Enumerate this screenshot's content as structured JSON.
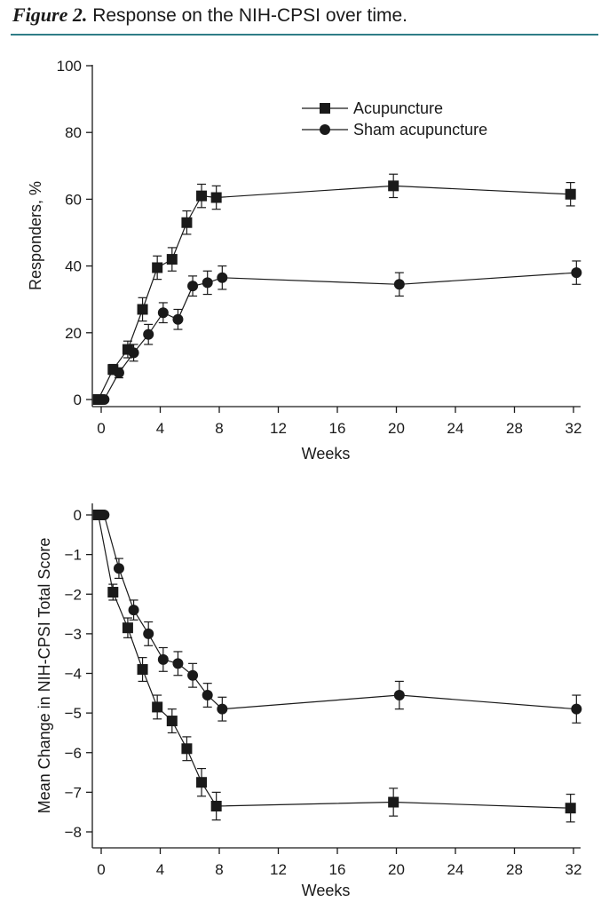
{
  "figure": {
    "lead": "Figure 2.",
    "title": "Response on the NIH-CPSI over time."
  },
  "chart_data": [
    {
      "type": "line",
      "xlabel": "Weeks",
      "ylabel": "Responders, %",
      "xlim": [
        -0.5,
        32.5
      ],
      "ylim": [
        0,
        100
      ],
      "xticks": [
        0,
        4,
        8,
        12,
        16,
        20,
        24,
        28,
        32
      ],
      "yticks": [
        0,
        20,
        40,
        60,
        80,
        100
      ],
      "legend_position": "top-right",
      "series": [
        {
          "name": "Acupuncture",
          "marker": "square",
          "x": [
            -0.2,
            0.8,
            1.8,
            2.8,
            3.8,
            4.8,
            5.8,
            6.8,
            7.8,
            19.8,
            31.8
          ],
          "y": [
            0,
            9,
            15,
            27,
            39.5,
            42,
            53,
            61,
            60.5,
            64,
            61.5
          ],
          "err": [
            0,
            1.5,
            2.5,
            3.5,
            3.5,
            3.5,
            3.5,
            3.5,
            3.5,
            3.5,
            3.5
          ]
        },
        {
          "name": "Sham acupuncture",
          "marker": "circle",
          "x": [
            0.2,
            1.2,
            2.2,
            3.2,
            4.2,
            5.2,
            6.2,
            7.2,
            8.2,
            20.2,
            32.2
          ],
          "y": [
            0,
            8,
            14,
            19.5,
            26,
            24,
            34,
            35,
            36.5,
            34.5,
            38
          ],
          "err": [
            0,
            1.5,
            2.5,
            3,
            3,
            3,
            3,
            3.5,
            3.5,
            3.5,
            3.5
          ]
        }
      ]
    },
    {
      "type": "line",
      "xlabel": "Weeks",
      "ylabel": "Mean Change in NIH-CPSI Total Score",
      "xlim": [
        -0.5,
        32.5
      ],
      "ylim": [
        -8.3,
        0.3
      ],
      "xticks": [
        0,
        4,
        8,
        12,
        16,
        20,
        24,
        28,
        32
      ],
      "yticks": [
        0,
        -1,
        -2,
        -3,
        -4,
        -5,
        -6,
        -7,
        -8
      ],
      "ytick_labels": [
        "0",
        "−1",
        "−2",
        "−3",
        "−4",
        "−5",
        "−6",
        "−7",
        "−8"
      ],
      "series": [
        {
          "name": "Acupuncture",
          "marker": "square",
          "x": [
            -0.2,
            0.8,
            1.8,
            2.8,
            3.8,
            4.8,
            5.8,
            6.8,
            7.8,
            19.8,
            31.8
          ],
          "y": [
            0,
            -1.95,
            -2.85,
            -3.9,
            -4.85,
            -5.2,
            -5.9,
            -6.75,
            -7.35,
            -7.25,
            -7.4
          ],
          "err": [
            0,
            0.2,
            0.25,
            0.3,
            0.3,
            0.3,
            0.3,
            0.35,
            0.35,
            0.35,
            0.35
          ]
        },
        {
          "name": "Sham acupuncture",
          "marker": "circle",
          "x": [
            0.2,
            1.2,
            2.2,
            3.2,
            4.2,
            5.2,
            6.2,
            7.2,
            8.2,
            20.2,
            32.2
          ],
          "y": [
            0,
            -1.35,
            -2.4,
            -3,
            -3.65,
            -3.75,
            -4.05,
            -4.55,
            -4.9,
            -4.55,
            -4.9
          ],
          "err": [
            0,
            0.25,
            0.25,
            0.3,
            0.3,
            0.3,
            0.3,
            0.3,
            0.3,
            0.35,
            0.35
          ]
        }
      ]
    }
  ]
}
